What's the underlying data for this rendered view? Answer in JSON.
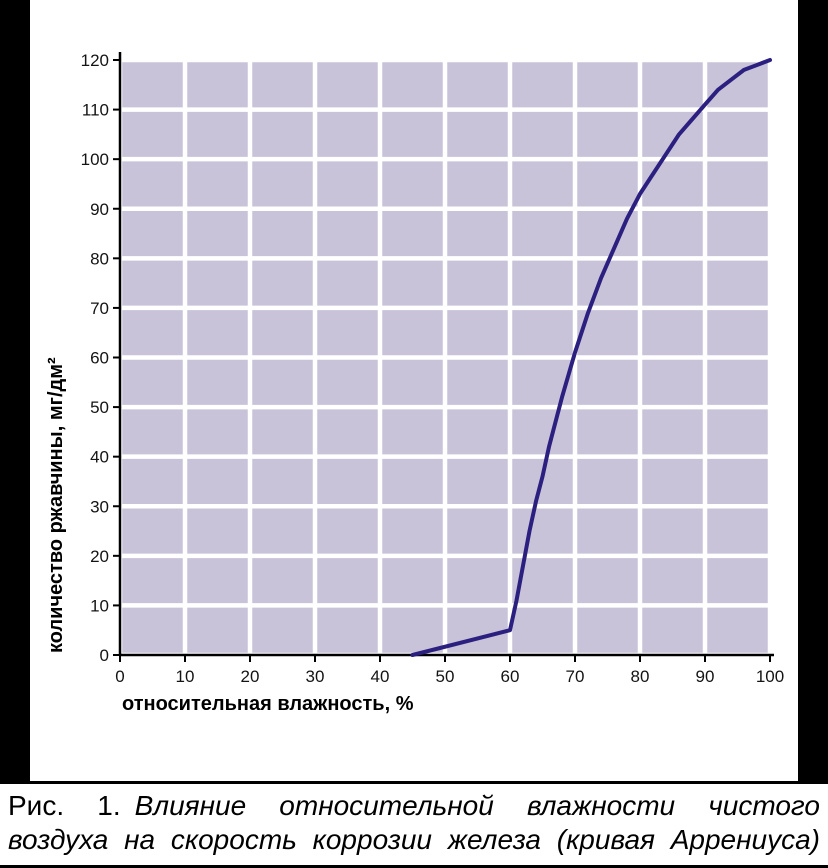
{
  "chart_data": {
    "type": "line",
    "title": "",
    "xlabel": "относительная влажность, %",
    "ylabel": "количество ржавчины, мг/дм²",
    "xlim": [
      0,
      100
    ],
    "ylim": [
      0,
      120
    ],
    "x_ticks": [
      0,
      10,
      20,
      30,
      40,
      50,
      60,
      70,
      80,
      90,
      100
    ],
    "y_ticks": [
      0,
      10,
      20,
      30,
      40,
      50,
      60,
      70,
      80,
      90,
      100,
      110,
      120
    ],
    "grid": true,
    "legend": false,
    "plot_bg_color": "#c8c3d8",
    "grid_color": "#ffffff",
    "axis_color": "#000000",
    "series": [
      {
        "name": "кривая Аррениуса",
        "color": "#2b2080",
        "points": [
          [
            45,
            0
          ],
          [
            60,
            5
          ],
          [
            61,
            11
          ],
          [
            62,
            18
          ],
          [
            63,
            25
          ],
          [
            64,
            31
          ],
          [
            65,
            36
          ],
          [
            66,
            42
          ],
          [
            67,
            47
          ],
          [
            68,
            52
          ],
          [
            70,
            61
          ],
          [
            72,
            69
          ],
          [
            74,
            76
          ],
          [
            76,
            82
          ],
          [
            78,
            88
          ],
          [
            80,
            93
          ],
          [
            82,
            97
          ],
          [
            84,
            101
          ],
          [
            86,
            105
          ],
          [
            88,
            108
          ],
          [
            90,
            111
          ],
          [
            92,
            114
          ],
          [
            94,
            116
          ],
          [
            96,
            118
          ],
          [
            98,
            119
          ],
          [
            100,
            120
          ]
        ]
      }
    ]
  },
  "caption": {
    "prefix": "Рис. 1.",
    "body": "Влияние относительной влажности чистого воздуха на скорость коррозии железа (кривая Аррениуса)"
  }
}
